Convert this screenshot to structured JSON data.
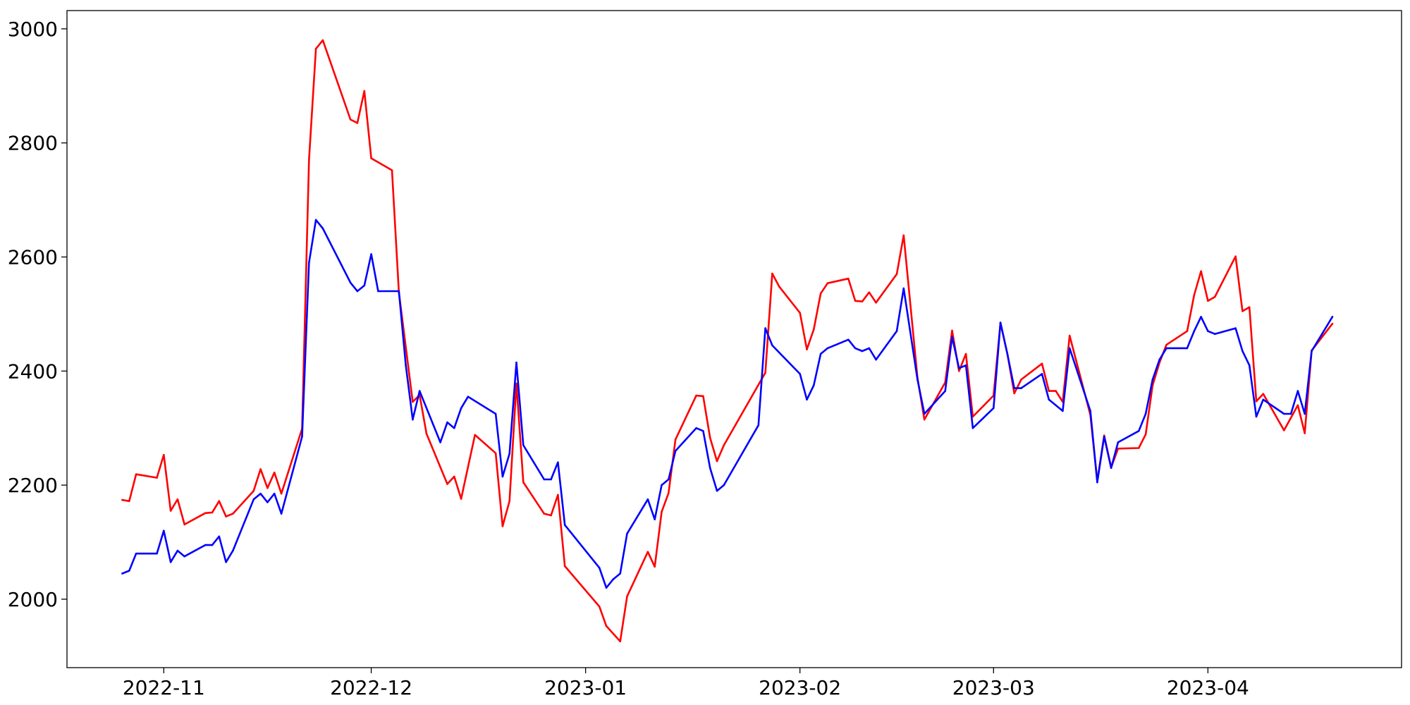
{
  "chart_data": {
    "type": "line",
    "title": "",
    "xlabel": "",
    "ylabel": "",
    "xlim": [
      "2022-10-18",
      "2023-04-29"
    ],
    "ylim": [
      1880,
      3032
    ],
    "grid": false,
    "xticks": [
      {
        "date": "2022-11-01",
        "label": "2022-11"
      },
      {
        "date": "2022-12-01",
        "label": "2022-12"
      },
      {
        "date": "2023-01-01",
        "label": "2023-01"
      },
      {
        "date": "2023-02-01",
        "label": "2023-02"
      },
      {
        "date": "2023-03-01",
        "label": "2023-03"
      },
      {
        "date": "2023-04-01",
        "label": "2023-04"
      }
    ],
    "yticks": [
      {
        "value": 2000,
        "label": "2000"
      },
      {
        "value": 2200,
        "label": "2200"
      },
      {
        "value": 2400,
        "label": "2400"
      },
      {
        "value": 2600,
        "label": "2600"
      },
      {
        "value": 2800,
        "label": "2800"
      },
      {
        "value": 3000,
        "label": "3000"
      }
    ],
    "series": [
      {
        "color": "#ff0000",
        "points": [
          [
            "2022-10-26",
            2174
          ],
          [
            "2022-10-27",
            2172
          ],
          [
            "2022-10-28",
            2219
          ],
          [
            "2022-10-31",
            2213
          ],
          [
            "2022-11-01",
            2253
          ],
          [
            "2022-11-02",
            2155
          ],
          [
            "2022-11-03",
            2175
          ],
          [
            "2022-11-04",
            2131
          ],
          [
            "2022-11-07",
            2151
          ],
          [
            "2022-11-08",
            2152
          ],
          [
            "2022-11-09",
            2172
          ],
          [
            "2022-11-10",
            2145
          ],
          [
            "2022-11-11",
            2150
          ],
          [
            "2022-11-14",
            2190
          ],
          [
            "2022-11-15",
            2228
          ],
          [
            "2022-11-16",
            2195
          ],
          [
            "2022-11-17",
            2222
          ],
          [
            "2022-11-18",
            2185
          ],
          [
            "2022-11-21",
            2299
          ],
          [
            "2022-11-22",
            2770
          ],
          [
            "2022-11-23",
            2965
          ],
          [
            "2022-11-24",
            2980
          ],
          [
            "2022-11-28",
            2841
          ],
          [
            "2022-11-29",
            2835
          ],
          [
            "2022-11-30",
            2891
          ],
          [
            "2022-12-01",
            2773
          ],
          [
            "2022-12-04",
            2752
          ],
          [
            "2022-12-05",
            2538
          ],
          [
            "2022-12-07",
            2346
          ],
          [
            "2022-12-08",
            2358
          ],
          [
            "2022-12-09",
            2290
          ],
          [
            "2022-12-12",
            2202
          ],
          [
            "2022-12-13",
            2215
          ],
          [
            "2022-12-14",
            2176
          ],
          [
            "2022-12-16",
            2288
          ],
          [
            "2022-12-19",
            2256
          ],
          [
            "2022-12-20",
            2128
          ],
          [
            "2022-12-21",
            2172
          ],
          [
            "2022-12-22",
            2378
          ],
          [
            "2022-12-23",
            2205
          ],
          [
            "2022-12-26",
            2150
          ],
          [
            "2022-12-27",
            2147
          ],
          [
            "2022-12-28",
            2183
          ],
          [
            "2022-12-29",
            2058
          ],
          [
            "2023-01-03",
            1987
          ],
          [
            "2023-01-04",
            1953
          ],
          [
            "2023-01-06",
            1926
          ],
          [
            "2023-01-07",
            2005
          ],
          [
            "2023-01-10",
            2083
          ],
          [
            "2023-01-11",
            2057
          ],
          [
            "2023-01-12",
            2153
          ],
          [
            "2023-01-13",
            2186
          ],
          [
            "2023-01-14",
            2280
          ],
          [
            "2023-01-17",
            2357
          ],
          [
            "2023-01-18",
            2356
          ],
          [
            "2023-01-19",
            2283
          ],
          [
            "2023-01-20",
            2242
          ],
          [
            "2023-01-21",
            2270
          ],
          [
            "2023-01-27",
            2397
          ],
          [
            "2023-01-28",
            2571
          ],
          [
            "2023-01-29",
            2548
          ],
          [
            "2023-02-01",
            2502
          ],
          [
            "2023-02-02",
            2438
          ],
          [
            "2023-02-03",
            2473
          ],
          [
            "2023-02-04",
            2536
          ],
          [
            "2023-02-05",
            2554
          ],
          [
            "2023-02-08",
            2562
          ],
          [
            "2023-02-09",
            2523
          ],
          [
            "2023-02-10",
            2522
          ],
          [
            "2023-02-11",
            2538
          ],
          [
            "2023-02-12",
            2520
          ],
          [
            "2023-02-15",
            2570
          ],
          [
            "2023-02-16",
            2638
          ],
          [
            "2023-02-18",
            2388
          ],
          [
            "2023-02-19",
            2315
          ],
          [
            "2023-02-22",
            2380
          ],
          [
            "2023-02-23",
            2471
          ],
          [
            "2023-02-24",
            2400
          ],
          [
            "2023-02-25",
            2430
          ],
          [
            "2023-02-26",
            2320
          ],
          [
            "2023-03-01",
            2357
          ],
          [
            "2023-03-02",
            2484
          ],
          [
            "2023-03-03",
            2430
          ],
          [
            "2023-03-04",
            2361
          ],
          [
            "2023-03-05",
            2385
          ],
          [
            "2023-03-08",
            2413
          ],
          [
            "2023-03-09",
            2365
          ],
          [
            "2023-03-10",
            2365
          ],
          [
            "2023-03-11",
            2346
          ],
          [
            "2023-03-12",
            2462
          ],
          [
            "2023-03-15",
            2323
          ],
          [
            "2023-03-16",
            2207
          ],
          [
            "2023-03-17",
            2287
          ],
          [
            "2023-03-18",
            2231
          ],
          [
            "2023-03-19",
            2264
          ],
          [
            "2023-03-22",
            2265
          ],
          [
            "2023-03-23",
            2289
          ],
          [
            "2023-03-24",
            2375
          ],
          [
            "2023-03-25",
            2415
          ],
          [
            "2023-03-26",
            2446
          ],
          [
            "2023-03-29",
            2470
          ],
          [
            "2023-03-30",
            2533
          ],
          [
            "2023-03-31",
            2575
          ],
          [
            "2023-04-01",
            2523
          ],
          [
            "2023-04-02",
            2530
          ],
          [
            "2023-04-05",
            2601
          ],
          [
            "2023-04-06",
            2505
          ],
          [
            "2023-04-07",
            2512
          ],
          [
            "2023-04-08",
            2347
          ],
          [
            "2023-04-09",
            2360
          ],
          [
            "2023-04-12",
            2296
          ],
          [
            "2023-04-14",
            2340
          ],
          [
            "2023-04-15",
            2291
          ],
          [
            "2023-04-16",
            2436
          ],
          [
            "2023-04-19",
            2483
          ]
        ]
      },
      {
        "color": "#0000ff",
        "points": [
          [
            "2022-10-26",
            2045
          ],
          [
            "2022-10-27",
            2050
          ],
          [
            "2022-10-28",
            2080
          ],
          [
            "2022-10-31",
            2080
          ],
          [
            "2022-11-01",
            2120
          ],
          [
            "2022-11-02",
            2065
          ],
          [
            "2022-11-03",
            2085
          ],
          [
            "2022-11-04",
            2075
          ],
          [
            "2022-11-07",
            2095
          ],
          [
            "2022-11-08",
            2095
          ],
          [
            "2022-11-09",
            2110
          ],
          [
            "2022-11-10",
            2065
          ],
          [
            "2022-11-11",
            2085
          ],
          [
            "2022-11-14",
            2175
          ],
          [
            "2022-11-15",
            2185
          ],
          [
            "2022-11-16",
            2170
          ],
          [
            "2022-11-17",
            2185
          ],
          [
            "2022-11-18",
            2150
          ],
          [
            "2022-11-21",
            2285
          ],
          [
            "2022-11-22",
            2590
          ],
          [
            "2022-11-23",
            2665
          ],
          [
            "2022-11-24",
            2650
          ],
          [
            "2022-11-28",
            2555
          ],
          [
            "2022-11-29",
            2540
          ],
          [
            "2022-11-30",
            2550
          ],
          [
            "2022-12-01",
            2605
          ],
          [
            "2022-12-02",
            2540
          ],
          [
            "2022-12-05",
            2540
          ],
          [
            "2022-12-06",
            2410
          ],
          [
            "2022-12-07",
            2315
          ],
          [
            "2022-12-08",
            2365
          ],
          [
            "2022-12-11",
            2275
          ],
          [
            "2022-12-12",
            2310
          ],
          [
            "2022-12-13",
            2300
          ],
          [
            "2022-12-14",
            2335
          ],
          [
            "2022-12-15",
            2355
          ],
          [
            "2022-12-19",
            2325
          ],
          [
            "2022-12-20",
            2215
          ],
          [
            "2022-12-21",
            2255
          ],
          [
            "2022-12-22",
            2415
          ],
          [
            "2022-12-23",
            2270
          ],
          [
            "2022-12-26",
            2210
          ],
          [
            "2022-12-27",
            2210
          ],
          [
            "2022-12-28",
            2240
          ],
          [
            "2022-12-29",
            2130
          ],
          [
            "2023-01-03",
            2055
          ],
          [
            "2023-01-04",
            2020
          ],
          [
            "2023-01-05",
            2035
          ],
          [
            "2023-01-06",
            2045
          ],
          [
            "2023-01-07",
            2115
          ],
          [
            "2023-01-10",
            2175
          ],
          [
            "2023-01-11",
            2140
          ],
          [
            "2023-01-12",
            2200
          ],
          [
            "2023-01-13",
            2210
          ],
          [
            "2023-01-14",
            2260
          ],
          [
            "2023-01-17",
            2300
          ],
          [
            "2023-01-18",
            2295
          ],
          [
            "2023-01-19",
            2230
          ],
          [
            "2023-01-20",
            2190
          ],
          [
            "2023-01-21",
            2200
          ],
          [
            "2023-01-26",
            2305
          ],
          [
            "2023-01-27",
            2475
          ],
          [
            "2023-01-28",
            2445
          ],
          [
            "2023-02-01",
            2395
          ],
          [
            "2023-02-02",
            2350
          ],
          [
            "2023-02-03",
            2375
          ],
          [
            "2023-02-04",
            2430
          ],
          [
            "2023-02-05",
            2440
          ],
          [
            "2023-02-08",
            2455
          ],
          [
            "2023-02-09",
            2440
          ],
          [
            "2023-02-10",
            2435
          ],
          [
            "2023-02-11",
            2440
          ],
          [
            "2023-02-12",
            2420
          ],
          [
            "2023-02-15",
            2470
          ],
          [
            "2023-02-16",
            2545
          ],
          [
            "2023-02-18",
            2385
          ],
          [
            "2023-02-19",
            2325
          ],
          [
            "2023-02-22",
            2365
          ],
          [
            "2023-02-23",
            2460
          ],
          [
            "2023-02-24",
            2405
          ],
          [
            "2023-02-25",
            2410
          ],
          [
            "2023-02-26",
            2300
          ],
          [
            "2023-03-01",
            2335
          ],
          [
            "2023-03-02",
            2485
          ],
          [
            "2023-03-03",
            2430
          ],
          [
            "2023-03-04",
            2370
          ],
          [
            "2023-03-05",
            2370
          ],
          [
            "2023-03-08",
            2395
          ],
          [
            "2023-03-09",
            2350
          ],
          [
            "2023-03-11",
            2330
          ],
          [
            "2023-03-12",
            2440
          ],
          [
            "2023-03-15",
            2330
          ],
          [
            "2023-03-16",
            2205
          ],
          [
            "2023-03-17",
            2285
          ],
          [
            "2023-03-18",
            2230
          ],
          [
            "2023-03-19",
            2275
          ],
          [
            "2023-03-22",
            2295
          ],
          [
            "2023-03-23",
            2325
          ],
          [
            "2023-03-24",
            2385
          ],
          [
            "2023-03-25",
            2420
          ],
          [
            "2023-03-26",
            2440
          ],
          [
            "2023-03-29",
            2440
          ],
          [
            "2023-03-30",
            2470
          ],
          [
            "2023-03-31",
            2495
          ],
          [
            "2023-04-01",
            2470
          ],
          [
            "2023-04-02",
            2465
          ],
          [
            "2023-04-05",
            2475
          ],
          [
            "2023-04-06",
            2435
          ],
          [
            "2023-04-07",
            2410
          ],
          [
            "2023-04-08",
            2320
          ],
          [
            "2023-04-09",
            2350
          ],
          [
            "2023-04-12",
            2325
          ],
          [
            "2023-04-13",
            2325
          ],
          [
            "2023-04-14",
            2365
          ],
          [
            "2023-04-15",
            2325
          ],
          [
            "2023-04-16",
            2435
          ],
          [
            "2023-04-19",
            2495
          ]
        ]
      }
    ]
  }
}
